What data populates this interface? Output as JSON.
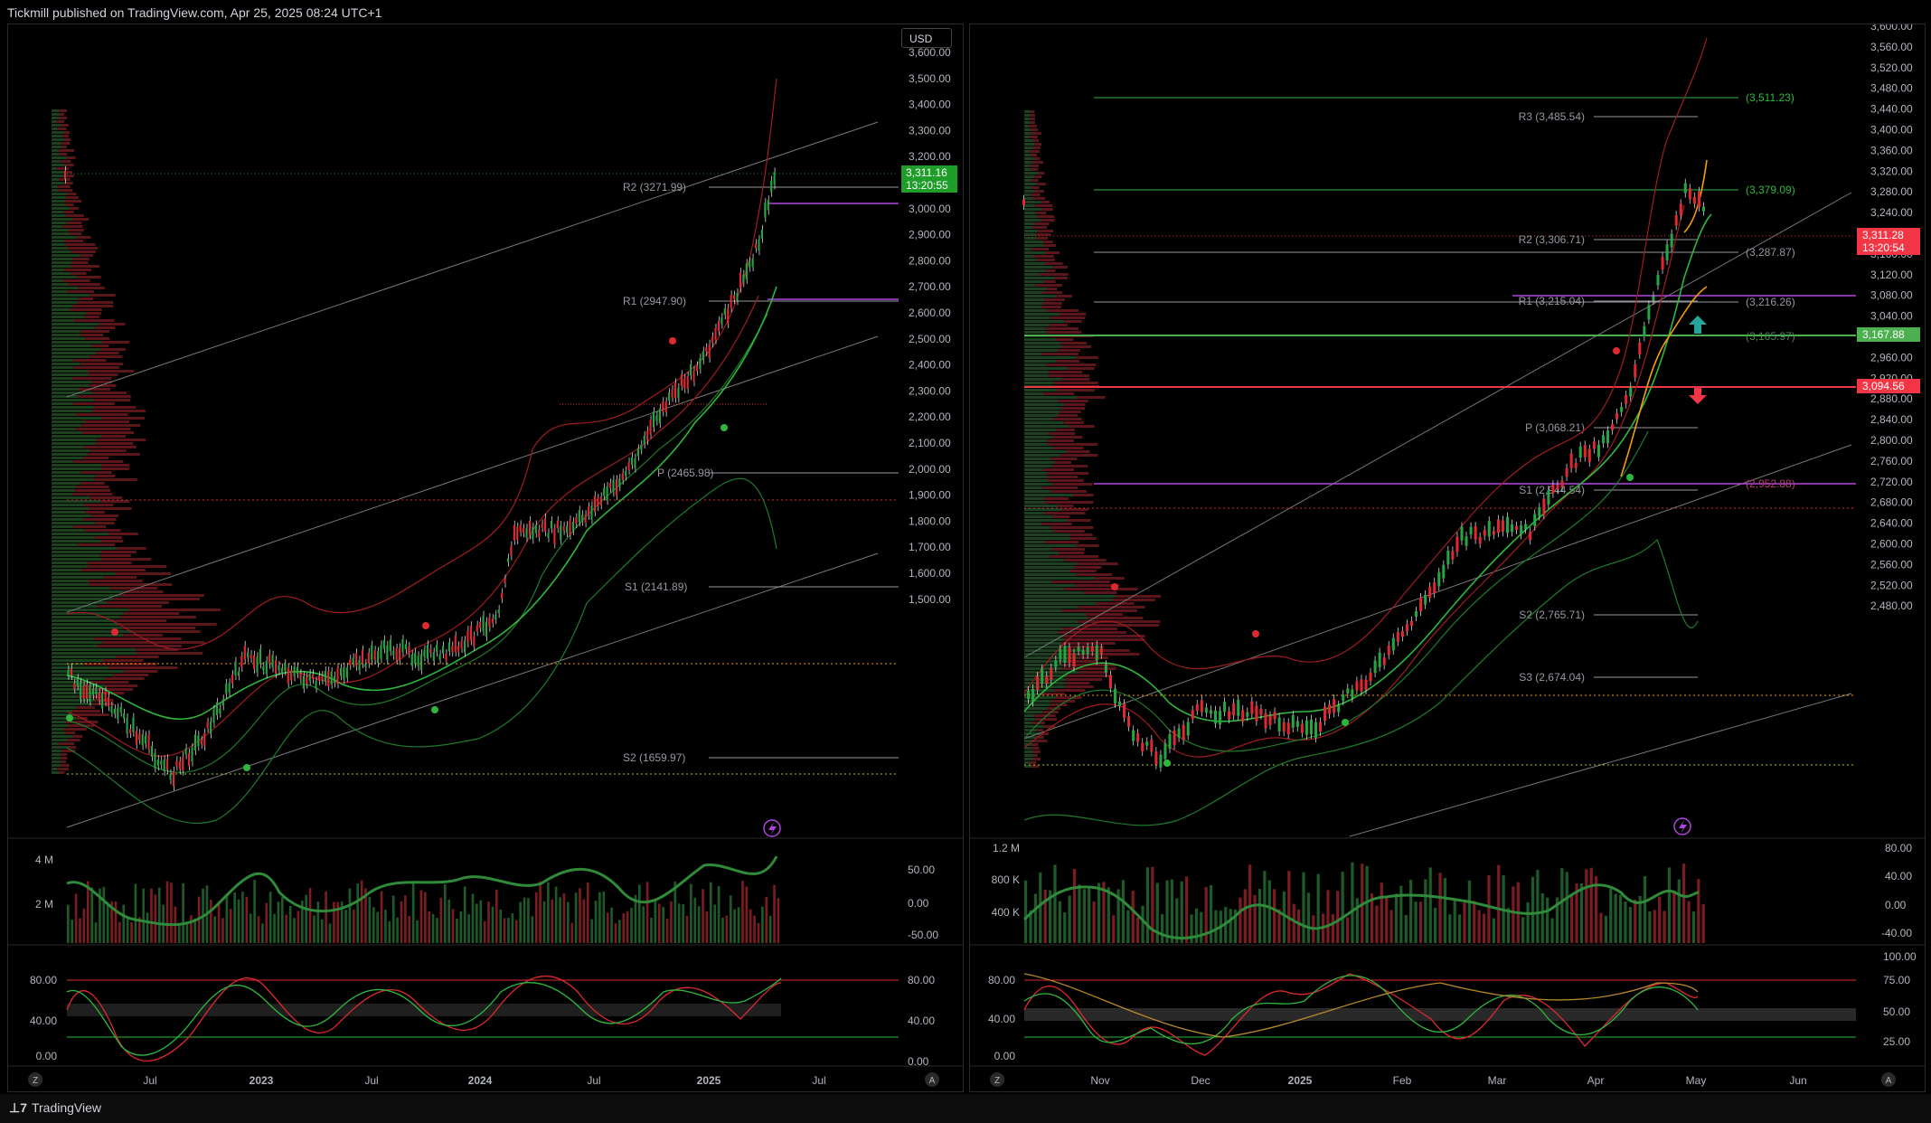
{
  "header": {
    "text": "Tickmill published on TradingView.com, Apr 25, 2025 08:24 UTC+1"
  },
  "footer": {
    "brand": "TradingView"
  },
  "left": {
    "currency": "USD",
    "price_ticks": [
      "3,600.00",
      "3,500.00",
      "3,400.00",
      "3,300.00",
      "3,200.00",
      "3,100.00",
      "3,000.00",
      "2,900.00",
      "2,800.00",
      "2,700.00",
      "2,600.00",
      "2,500.00",
      "2,400.00",
      "2,300.00",
      "2,200.00",
      "2,100.00",
      "2,000.00",
      "1,900.00",
      "1,800.00",
      "1,700.00",
      "1,600.00",
      "1,500.00"
    ],
    "last_price": "3,311.16",
    "countdown": "13:20:55",
    "pivots": [
      "R2 (3271.99)",
      "R1 (2947.90)",
      "P (2465.98)",
      "S1 (2141.89)",
      "S2 (1659.97)"
    ],
    "volume_ticks": [
      "4 M",
      "2 M"
    ],
    "osc1_ticks": [
      "50.00",
      "0.00",
      "-50.00"
    ],
    "osc2_left_ticks": [
      "80.00",
      "40.00",
      "0.00"
    ],
    "osc2_right_ticks": [
      "80.00",
      "40.00",
      "0.00"
    ],
    "time_ticks": [
      "Jul",
      "2023",
      "Jul",
      "2024",
      "Jul",
      "2025",
      "Jul"
    ],
    "time_bold": [
      false,
      true,
      false,
      true,
      false,
      true,
      false
    ],
    "corner_left": "Z",
    "corner_right": "A"
  },
  "right": {
    "price_ticks": [
      "3,600.00",
      "3,560.00",
      "3,520.00",
      "3,480.00",
      "3,440.00",
      "3,400.00",
      "3,360.00",
      "3,320.00",
      "3,280.00",
      "3,240.00",
      "3,200.00",
      "3,160.00",
      "3,120.00",
      "3,080.00",
      "3,040.00",
      "3,000.00",
      "2,960.00",
      "2,920.00",
      "2,880.00",
      "2,840.00",
      "2,800.00",
      "2,760.00",
      "2,720.00",
      "2,680.00",
      "2,640.00",
      "2,600.00",
      "2,560.00",
      "2,520.00",
      "2,480.00"
    ],
    "last_price": "3,311.28",
    "countdown": "13:20:54",
    "green_level": "3,167.88",
    "red_level": "3,094.56",
    "pivots": [
      "R3 (3,485.54)",
      "R2 (3,306.71)",
      "R1 (3,215.04)",
      "P (3,068.21)",
      "S1 (2,944.54)",
      "S2 (2,765.71)",
      "S3 (2,674.04)"
    ],
    "levels_right": [
      "(3,511.23)",
      "(3,379.09)",
      "(3,287.87)",
      "(3,216.26)",
      "(3,165.97)",
      "(2,952.88)"
    ],
    "volume_ticks": [
      "1.2 M",
      "800 K",
      "400 K"
    ],
    "osc1_ticks": [
      "80.00",
      "40.00",
      "0.00",
      "-40.00"
    ],
    "osc2_left_ticks": [
      "80.00",
      "40.00",
      "0.00"
    ],
    "osc2_right_ticks": [
      "100.00",
      "75.00",
      "50.00",
      "25.00"
    ],
    "time_ticks": [
      "Nov",
      "Dec",
      "2025",
      "Feb",
      "Mar",
      "Apr",
      "May",
      "Jun"
    ],
    "time_bold": [
      false,
      false,
      true,
      false,
      false,
      false,
      false,
      false
    ],
    "corner_left": "Z",
    "corner_right": "A"
  },
  "colors": {
    "bull": "#26a641",
    "bear": "#e0292f",
    "pivot": "#9598a1",
    "purple": "#b044e0",
    "orange": "#f59e0b",
    "last_green": "#1e9e28",
    "last_red": "#f23645"
  }
}
